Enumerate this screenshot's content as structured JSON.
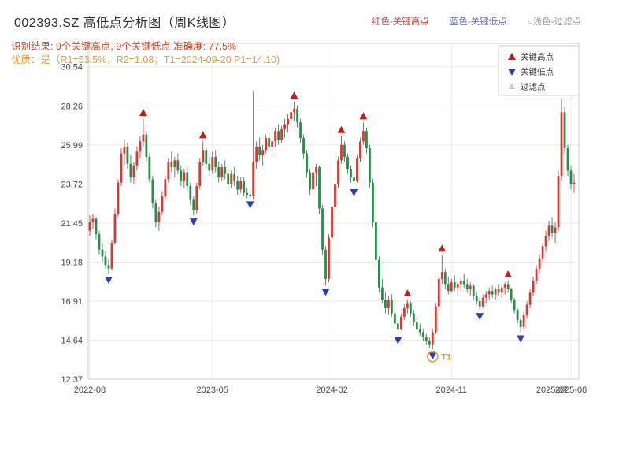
{
  "header": {
    "title": "002393.SZ 高低点分析图（周K线图）",
    "legend_high": "红色-关键高点",
    "legend_low": "蓝色-关键低点",
    "legend_filter": "○浅色-过滤点",
    "result_line": "识别结果: 9个关键高点, 9个关键低点  准确度: 77.5%",
    "quality_line": "优质：是（R1=53.5%，R2=1.08；T1=2024-09-20 P1=14.10)"
  },
  "colors": {
    "up_candle": "#cf3c35",
    "down_candle": "#2c8a4d",
    "marker_high": "#c41b1b",
    "marker_low": "#2b3cc0",
    "filter_fill": "#f3cdcb",
    "filter_stroke": "#b9b9b9",
    "grid": "#ebebeb",
    "frame": "#cfcfcf",
    "t1": "#eda43b",
    "header_red": "#c9413a",
    "header_blue": "#5b6ec6",
    "header_gray": "#9a9a9a",
    "result_text": "#cd4a2e",
    "quality_text": "#e0a03c"
  },
  "chart_data": {
    "type": "candlestick",
    "title": "002393.SZ 高低点分析图（周K线图）",
    "grid": true,
    "ylim": [
      12.37,
      31.9
    ],
    "y_ticks": [
      30.54,
      28.26,
      25.99,
      23.72,
      21.45,
      19.18,
      16.91,
      14.64,
      12.37
    ],
    "x_ticks": [
      {
        "i": 0,
        "label": "2022-08",
        "grid": true
      },
      {
        "i": 39,
        "label": "2023-05",
        "grid": true
      },
      {
        "i": 77,
        "label": "2024-02",
        "grid": true
      },
      {
        "i": 115,
        "label": "2024-11",
        "grid": true
      },
      {
        "i": 147,
        "label": "2025-07",
        "grid": false
      },
      {
        "i": 153,
        "label": "2025-08",
        "grid": true
      }
    ],
    "candles": [
      [
        21.0,
        21.9,
        20.7,
        21.5
      ],
      [
        21.5,
        22.0,
        21.1,
        21.7
      ],
      [
        21.7,
        21.8,
        20.5,
        20.8
      ],
      [
        20.8,
        21.0,
        19.6,
        19.9
      ],
      [
        19.9,
        20.3,
        19.2,
        19.5
      ],
      [
        19.5,
        19.8,
        18.8,
        19.0
      ],
      [
        19.0,
        19.4,
        18.5,
        18.8
      ],
      [
        18.8,
        20.5,
        18.7,
        20.3
      ],
      [
        20.3,
        22.3,
        20.2,
        22.0
      ],
      [
        22.0,
        24.0,
        21.8,
        23.8
      ],
      [
        23.8,
        25.8,
        23.6,
        25.5
      ],
      [
        25.5,
        26.3,
        24.8,
        25.9
      ],
      [
        25.9,
        26.1,
        24.6,
        24.9
      ],
      [
        24.9,
        25.4,
        23.8,
        24.1
      ],
      [
        24.1,
        25.0,
        23.7,
        24.8
      ],
      [
        24.8,
        25.9,
        24.5,
        25.6
      ],
      [
        25.6,
        26.5,
        25.2,
        26.2
      ],
      [
        26.2,
        27.5,
        25.9,
        26.6
      ],
      [
        26.6,
        26.8,
        25.0,
        25.3
      ],
      [
        25.3,
        25.5,
        23.8,
        24.0
      ],
      [
        24.0,
        24.2,
        22.3,
        22.6
      ],
      [
        22.6,
        22.8,
        21.2,
        21.5
      ],
      [
        21.5,
        22.4,
        21.0,
        22.1
      ],
      [
        22.1,
        23.3,
        21.9,
        23.0
      ],
      [
        23.0,
        24.2,
        22.8,
        24.0
      ],
      [
        24.0,
        25.2,
        23.8,
        25.0
      ],
      [
        25.0,
        25.6,
        24.4,
        24.7
      ],
      [
        24.7,
        25.3,
        24.1,
        25.1
      ],
      [
        25.1,
        25.5,
        24.3,
        24.5
      ],
      [
        24.5,
        24.8,
        23.6,
        23.9
      ],
      [
        23.9,
        24.6,
        23.5,
        24.4
      ],
      [
        24.4,
        24.7,
        23.3,
        23.6
      ],
      [
        23.6,
        23.8,
        22.5,
        22.8
      ],
      [
        22.8,
        23.0,
        21.9,
        22.2
      ],
      [
        22.2,
        23.8,
        22.0,
        23.6
      ],
      [
        23.6,
        25.2,
        23.4,
        25.0
      ],
      [
        25.0,
        26.2,
        24.8,
        25.7
      ],
      [
        25.7,
        25.9,
        24.6,
        24.9
      ],
      [
        24.9,
        25.4,
        24.2,
        24.5
      ],
      [
        24.5,
        25.6,
        24.3,
        25.3
      ],
      [
        25.3,
        25.7,
        24.4,
        24.7
      ],
      [
        24.7,
        25.0,
        23.8,
        24.1
      ],
      [
        24.1,
        24.9,
        23.9,
        24.7
      ],
      [
        24.7,
        25.1,
        24.0,
        24.3
      ],
      [
        24.3,
        24.6,
        23.4,
        23.7
      ],
      [
        23.7,
        24.5,
        23.5,
        24.3
      ],
      [
        24.3,
        24.7,
        23.6,
        23.9
      ],
      [
        23.9,
        24.2,
        23.1,
        23.4
      ],
      [
        23.4,
        24.1,
        23.2,
        23.9
      ],
      [
        23.9,
        24.1,
        23.0,
        23.2
      ],
      [
        23.2,
        23.5,
        22.9,
        23.1
      ],
      [
        23.1,
        23.4,
        22.9,
        23.0
      ],
      [
        23.0,
        29.1,
        22.8,
        25.0
      ],
      [
        25.0,
        26.2,
        24.6,
        25.9
      ],
      [
        25.9,
        26.4,
        25.1,
        25.4
      ],
      [
        25.4,
        26.0,
        24.8,
        25.7
      ],
      [
        25.7,
        26.6,
        25.5,
        26.4
      ],
      [
        26.4,
        26.8,
        25.6,
        25.9
      ],
      [
        25.9,
        26.5,
        25.3,
        26.2
      ],
      [
        26.2,
        27.0,
        25.9,
        26.8
      ],
      [
        26.8,
        27.2,
        26.0,
        26.3
      ],
      [
        26.3,
        27.1,
        26.1,
        26.9
      ],
      [
        26.9,
        27.5,
        26.4,
        27.2
      ],
      [
        27.2,
        27.8,
        26.7,
        27.5
      ],
      [
        27.5,
        28.1,
        27.0,
        27.9
      ],
      [
        27.9,
        28.5,
        27.4,
        28.1
      ],
      [
        28.1,
        28.3,
        27.0,
        27.3
      ],
      [
        27.3,
        27.5,
        26.1,
        26.4
      ],
      [
        26.4,
        26.6,
        25.2,
        25.5
      ],
      [
        25.5,
        25.7,
        24.1,
        24.4
      ],
      [
        24.4,
        24.6,
        23.1,
        23.4
      ],
      [
        23.4,
        24.6,
        23.2,
        24.4
      ],
      [
        24.4,
        24.9,
        23.6,
        24.7
      ],
      [
        24.7,
        24.8,
        22.0,
        22.3
      ],
      [
        22.3,
        22.5,
        19.6,
        19.9
      ],
      [
        19.9,
        20.1,
        17.8,
        18.2
      ],
      [
        18.2,
        20.8,
        18.0,
        20.6
      ],
      [
        20.6,
        22.6,
        20.4,
        22.4
      ],
      [
        22.4,
        23.9,
        22.1,
        23.7
      ],
      [
        23.7,
        25.3,
        23.5,
        25.1
      ],
      [
        25.1,
        26.5,
        24.9,
        26.0
      ],
      [
        26.0,
        26.2,
        25.0,
        25.3
      ],
      [
        25.3,
        25.5,
        24.3,
        24.6
      ],
      [
        24.6,
        24.8,
        23.8,
        24.1
      ],
      [
        24.1,
        24.3,
        23.6,
        23.9
      ],
      [
        23.9,
        25.4,
        23.8,
        25.2
      ],
      [
        25.2,
        26.4,
        25.0,
        26.2
      ],
      [
        26.2,
        27.3,
        26.0,
        26.8
      ],
      [
        26.8,
        27.0,
        25.5,
        25.8
      ],
      [
        25.8,
        26.0,
        23.5,
        23.8
      ],
      [
        23.8,
        24.0,
        21.2,
        21.5
      ],
      [
        21.5,
        21.7,
        19.0,
        19.3
      ],
      [
        19.3,
        19.5,
        17.4,
        17.7
      ],
      [
        17.7,
        18.2,
        16.8,
        17.0
      ],
      [
        17.0,
        17.4,
        16.2,
        16.5
      ],
      [
        16.5,
        17.2,
        16.1,
        17.0
      ],
      [
        17.0,
        17.3,
        16.0,
        16.2
      ],
      [
        16.2,
        16.4,
        15.4,
        15.6
      ],
      [
        15.6,
        15.8,
        15.0,
        15.3
      ],
      [
        15.3,
        16.2,
        15.2,
        16.0
      ],
      [
        16.0,
        16.7,
        15.8,
        16.5
      ],
      [
        16.5,
        17.0,
        16.2,
        16.8
      ],
      [
        16.8,
        16.9,
        16.0,
        16.2
      ],
      [
        16.2,
        16.4,
        15.5,
        15.7
      ],
      [
        15.7,
        15.9,
        15.1,
        15.3
      ],
      [
        15.3,
        15.6,
        14.9,
        15.1
      ],
      [
        15.1,
        15.3,
        14.6,
        14.8
      ],
      [
        14.8,
        15.0,
        14.4,
        14.6
      ],
      [
        14.6,
        14.8,
        14.2,
        14.4
      ],
      [
        14.4,
        15.3,
        14.1,
        15.1
      ],
      [
        15.1,
        16.8,
        15.0,
        16.6
      ],
      [
        16.6,
        18.4,
        16.4,
        18.2
      ],
      [
        18.2,
        19.6,
        17.9,
        18.6
      ],
      [
        18.6,
        18.8,
        17.6,
        17.9
      ],
      [
        17.9,
        18.3,
        17.3,
        17.5
      ],
      [
        17.5,
        18.2,
        17.4,
        18.0
      ],
      [
        18.0,
        18.4,
        17.5,
        17.7
      ],
      [
        17.7,
        18.1,
        17.2,
        17.9
      ],
      [
        17.9,
        18.3,
        17.5,
        18.1
      ],
      [
        18.1,
        18.5,
        17.7,
        17.9
      ],
      [
        17.9,
        18.2,
        17.4,
        17.6
      ],
      [
        17.6,
        18.0,
        17.2,
        17.8
      ],
      [
        17.8,
        17.9,
        17.0,
        17.2
      ],
      [
        17.2,
        17.4,
        16.7,
        16.9
      ],
      [
        16.9,
        17.1,
        16.4,
        16.6
      ],
      [
        16.6,
        17.3,
        16.5,
        17.1
      ],
      [
        17.1,
        17.5,
        16.8,
        17.3
      ],
      [
        17.3,
        17.7,
        17.0,
        17.5
      ],
      [
        17.5,
        17.8,
        17.1,
        17.3
      ],
      [
        17.3,
        17.7,
        17.0,
        17.6
      ],
      [
        17.6,
        17.9,
        17.2,
        17.4
      ],
      [
        17.4,
        17.8,
        17.1,
        17.7
      ],
      [
        17.7,
        18.0,
        17.3,
        17.9
      ],
      [
        17.9,
        18.1,
        17.4,
        17.6
      ],
      [
        17.6,
        17.7,
        16.8,
        17.0
      ],
      [
        17.0,
        17.1,
        16.2,
        16.4
      ],
      [
        16.4,
        16.5,
        15.6,
        15.8
      ],
      [
        15.8,
        15.9,
        15.1,
        15.4
      ],
      [
        15.4,
        16.3,
        15.3,
        16.1
      ],
      [
        16.1,
        16.9,
        15.9,
        16.7
      ],
      [
        16.7,
        17.6,
        16.5,
        17.4
      ],
      [
        17.4,
        18.3,
        17.2,
        18.1
      ],
      [
        18.1,
        19.0,
        17.9,
        18.8
      ],
      [
        18.8,
        19.6,
        18.5,
        19.4
      ],
      [
        19.4,
        20.3,
        19.2,
        20.1
      ],
      [
        20.1,
        21.0,
        19.8,
        20.7
      ],
      [
        20.7,
        21.6,
        20.4,
        21.3
      ],
      [
        21.3,
        21.8,
        20.6,
        20.9
      ],
      [
        20.9,
        21.5,
        20.3,
        21.2
      ],
      [
        21.2,
        24.5,
        21.0,
        24.2
      ],
      [
        24.2,
        28.7,
        23.9,
        27.9
      ],
      [
        27.9,
        28.2,
        25.5,
        25.8
      ],
      [
        25.8,
        26.0,
        24.2,
        24.5
      ],
      [
        24.5,
        24.8,
        23.4,
        23.7
      ],
      [
        23.7,
        24.3,
        23.2,
        23.8
      ]
    ],
    "key_highs": [
      {
        "i": 17,
        "p": 27.5
      },
      {
        "i": 36,
        "p": 26.2
      },
      {
        "i": 65,
        "p": 28.5
      },
      {
        "i": 80,
        "p": 26.5
      },
      {
        "i": 87,
        "p": 27.3
      },
      {
        "i": 101,
        "p": 17.0
      },
      {
        "i": 112,
        "p": 19.6
      },
      {
        "i": 133,
        "p": 18.1
      },
      {
        "i": 150,
        "p": 28.7
      }
    ],
    "key_lows": [
      {
        "i": 6,
        "p": 18.5
      },
      {
        "i": 33,
        "p": 21.9
      },
      {
        "i": 51,
        "p": 22.9
      },
      {
        "i": 75,
        "p": 17.8
      },
      {
        "i": 84,
        "p": 23.6
      },
      {
        "i": 98,
        "p": 15.0
      },
      {
        "i": 109,
        "p": 14.1
      },
      {
        "i": 124,
        "p": 16.4
      },
      {
        "i": 137,
        "p": 15.1
      }
    ],
    "filtered_points": [],
    "t1": {
      "i": 109,
      "p": 14.1,
      "label": "T1"
    },
    "marker_legend": [
      "关键高点",
      "关键低点",
      "过滤点"
    ],
    "legend_position": "top-right-inside"
  }
}
